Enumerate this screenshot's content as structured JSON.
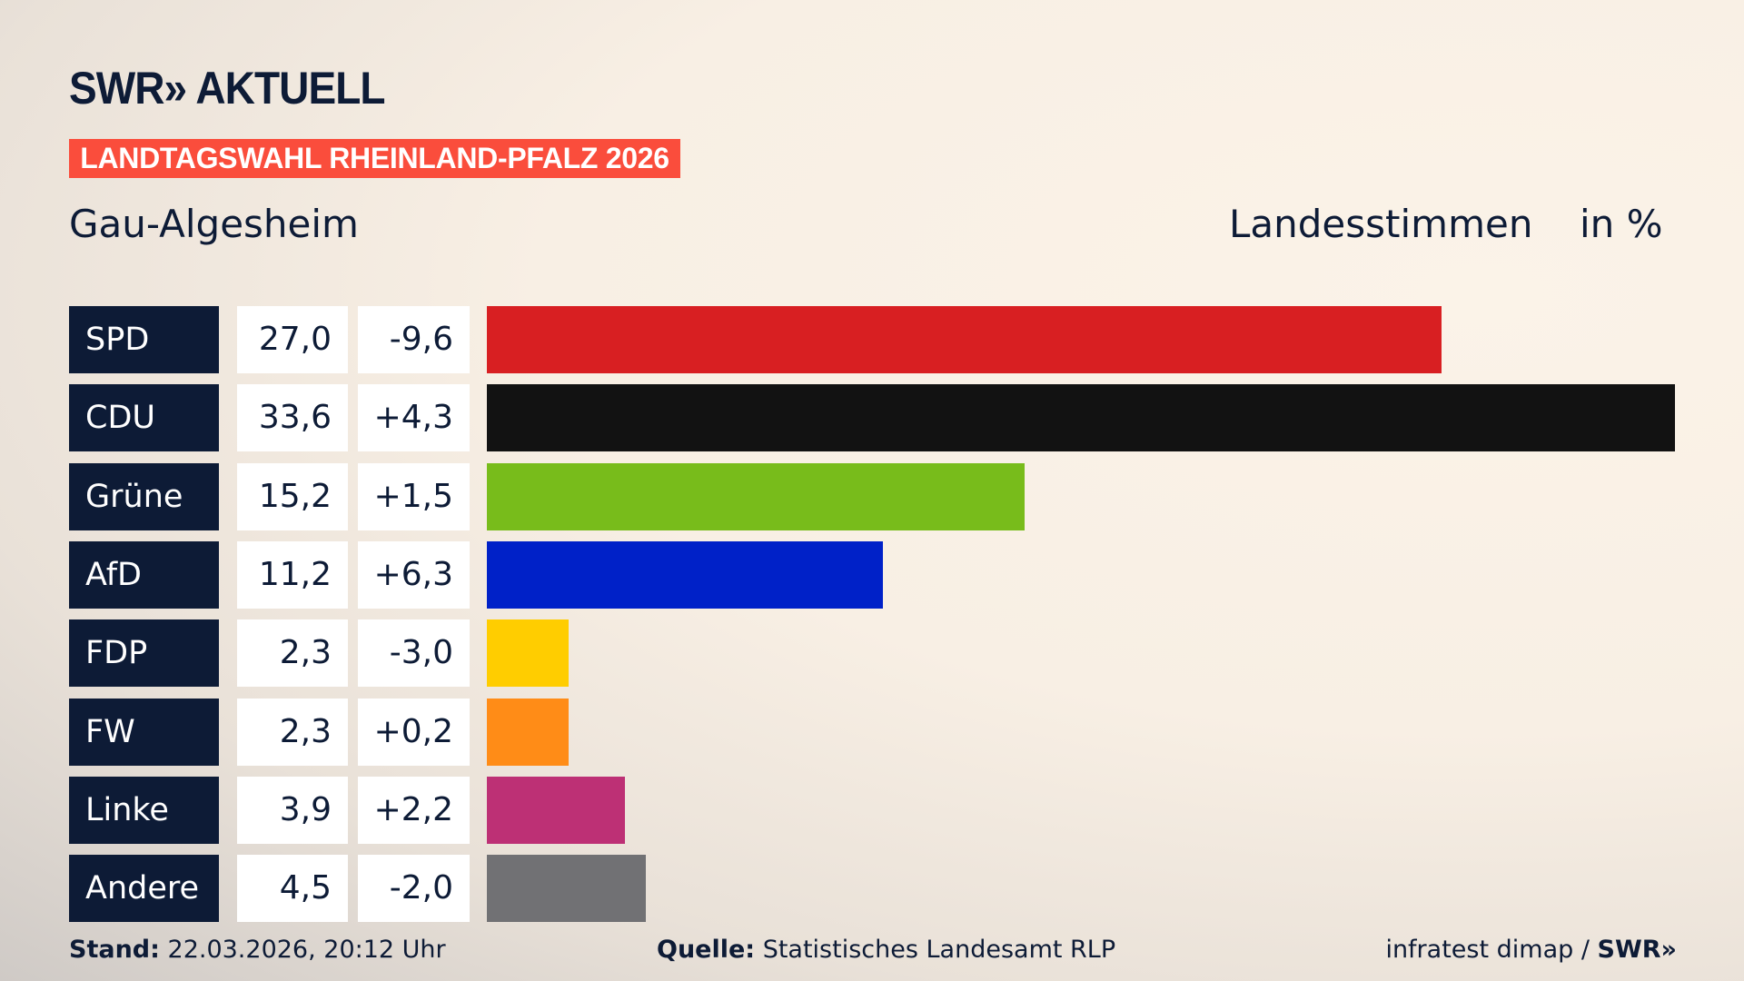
{
  "header": {
    "logo": "SWR» AKTUELL",
    "banner": "LANDTAGSWAHL RHEINLAND-PFALZ 2026",
    "region": "Gau-Algesheim",
    "measure": "Landesstimmen",
    "unit": "in %"
  },
  "chart_data": {
    "type": "bar",
    "orientation": "horizontal",
    "title": "Gau-Algesheim – Landesstimmen in %",
    "categories": [
      "SPD",
      "CDU",
      "Grüne",
      "AfD",
      "FDP",
      "FW",
      "Linke",
      "Andere"
    ],
    "values": [
      27.0,
      33.6,
      15.2,
      11.2,
      2.3,
      2.3,
      3.9,
      4.5
    ],
    "value_labels": [
      "27,0",
      "33,6",
      "15,2",
      "11,2",
      "2,3",
      "2,3",
      "3,9",
      "4,5"
    ],
    "diff_labels": [
      "-9,6",
      "+4,3",
      "+1,5",
      "+6,3",
      "-3,0",
      "+0,2",
      "+2,2",
      "-2,0"
    ],
    "diffs": [
      -9.6,
      4.3,
      1.5,
      6.3,
      -3.0,
      0.2,
      2.2,
      -2.0
    ],
    "colors": [
      "#d81f22",
      "#121212",
      "#78bc1b",
      "#0021c8",
      "#ffcd00",
      "#ff8c17",
      "#bd3075",
      "#717174"
    ],
    "xlim": [
      0,
      33.6
    ]
  },
  "footer": {
    "stand_label": "Stand:",
    "stand_value": "22.03.2026, 20:12 Uhr",
    "source_label": "Quelle:",
    "source_value": "Statistisches Landesamt RLP",
    "credit": "infratest dimap / ",
    "credit_brand": "SWR»"
  }
}
